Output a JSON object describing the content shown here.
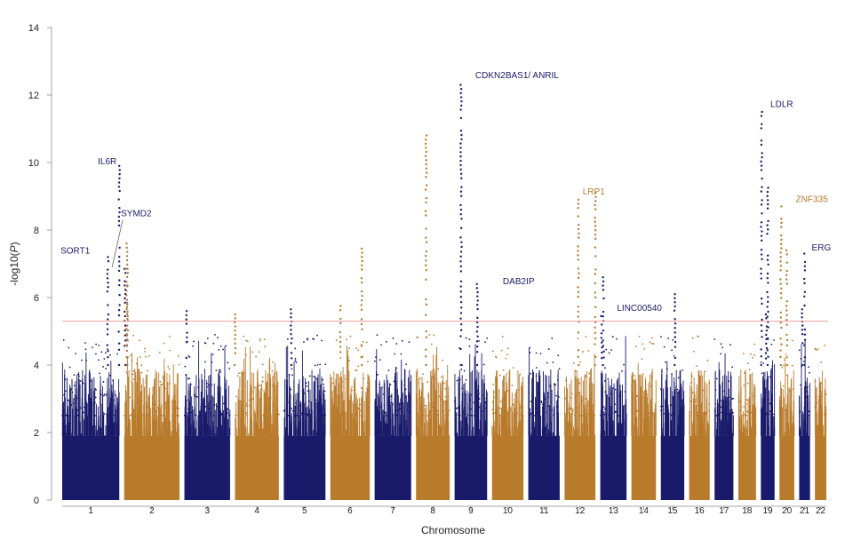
{
  "chart_data": {
    "type": "scatter",
    "title": "",
    "xlabel": "Chromosome",
    "ylabel": "-log10(P)",
    "ylim": [
      0,
      14
    ],
    "yticks": [
      0,
      2,
      4,
      6,
      8,
      10,
      12,
      14
    ],
    "grid": false,
    "legend": "none",
    "threshold": 5.3,
    "colors": {
      "odd": "#1a1a6b",
      "even": "#b87a2b",
      "threshold": "#f0a0a0",
      "text": "#222222"
    },
    "chromosomes": [
      "1",
      "2",
      "3",
      "4",
      "5",
      "6",
      "7",
      "8",
      "9",
      "10",
      "11",
      "12",
      "13",
      "14",
      "15",
      "16",
      "17",
      "18",
      "19",
      "20",
      "21",
      "22"
    ],
    "peaks": [
      {
        "chromosome": "1",
        "position": 0.8,
        "value": 7.2
      },
      {
        "chromosome": "1",
        "position": 1.0,
        "value": 9.9
      },
      {
        "chromosome": "1",
        "position": 1.1,
        "value": 6.85
      },
      {
        "chromosome": "2",
        "position": 0.05,
        "value": 7.6
      },
      {
        "chromosome": "2",
        "position": 0.06,
        "value": 6.85
      },
      {
        "chromosome": "3",
        "position": 0.05,
        "value": 5.6
      },
      {
        "chromosome": "4",
        "position": 0.0,
        "value": 5.5
      },
      {
        "chromosome": "5",
        "position": 0.18,
        "value": 5.65
      },
      {
        "chromosome": "6",
        "position": 0.25,
        "value": 5.75
      },
      {
        "chromosome": "6",
        "position": 0.8,
        "value": 7.45
      },
      {
        "chromosome": "8",
        "position": 0.3,
        "value": 10.8
      },
      {
        "chromosome": "9",
        "position": 0.2,
        "value": 12.3
      },
      {
        "chromosome": "9",
        "position": 0.7,
        "value": 6.4
      },
      {
        "chromosome": "12",
        "position": 0.45,
        "value": 8.9
      },
      {
        "chromosome": "12",
        "position": 1.0,
        "value": 9.1
      },
      {
        "chromosome": "13",
        "position": 0.05,
        "value": 5.45
      },
      {
        "chromosome": "13",
        "position": 0.12,
        "value": 6.6
      },
      {
        "chromosome": "15",
        "position": 0.6,
        "value": 6.1
      },
      {
        "chromosome": "19",
        "position": 0.05,
        "value": 11.5
      },
      {
        "chromosome": "19",
        "position": 0.5,
        "value": 9.25
      },
      {
        "chromosome": "19",
        "position": 0.4,
        "value": 5.5
      },
      {
        "chromosome": "20",
        "position": 0.1,
        "value": 8.7
      },
      {
        "chromosome": "20",
        "position": 0.5,
        "value": 7.4
      },
      {
        "chromosome": "21",
        "position": 0.5,
        "value": 7.3
      },
      {
        "chromosome": "21",
        "position": 0.3,
        "value": 5.65
      }
    ],
    "annotations": [
      {
        "label": "SORT1",
        "chromosome": "1",
        "value": 7.3,
        "color": "odd"
      },
      {
        "label": "IL6R",
        "chromosome": "1",
        "value": 9.95,
        "color": "odd"
      },
      {
        "label": "SYMD2",
        "chromosome": "1",
        "value": 8.2,
        "color": "odd"
      },
      {
        "label": "CDKN2BAS1/ ANRIL",
        "chromosome": "9",
        "value": 12.4,
        "color": "odd"
      },
      {
        "label": "DAB2IP",
        "chromosome": "9",
        "value": 6.4,
        "color": "odd"
      },
      {
        "label": "LRP1",
        "chromosome": "12",
        "value": 9.05,
        "color": "even"
      },
      {
        "label": "LINC00540",
        "chromosome": "13",
        "value": 5.4,
        "color": "odd"
      },
      {
        "label": "LDLR",
        "chromosome": "19",
        "value": 11.65,
        "color": "odd"
      },
      {
        "label": "ZNF335",
        "chromosome": "20",
        "value": 8.75,
        "color": "even"
      },
      {
        "label": "ERG",
        "chromosome": "21",
        "value": 7.4,
        "color": "odd"
      }
    ]
  }
}
